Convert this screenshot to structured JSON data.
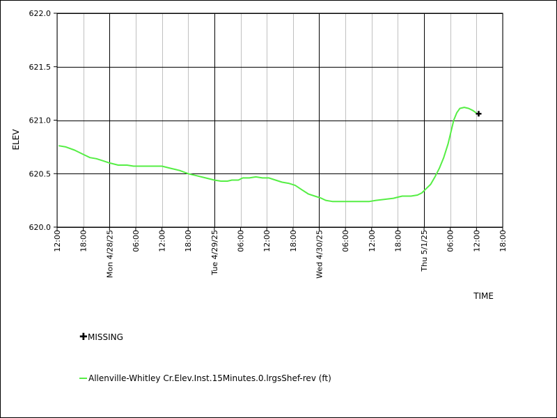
{
  "chart_data": {
    "type": "line",
    "ylabel": "ELEV",
    "xlabel": "TIME",
    "ylim": [
      620.0,
      622.0
    ],
    "yticks": [
      {
        "value": 620.0,
        "label": "620.0"
      },
      {
        "value": 620.5,
        "label": "620.5"
      },
      {
        "value": 621.0,
        "label": "621.0"
      },
      {
        "value": 621.5,
        "label": "621.5"
      },
      {
        "value": 622.0,
        "label": "622.0"
      }
    ],
    "xlim_hours": [
      0,
      102
    ],
    "xticks": [
      {
        "h": 0,
        "label": "12:00",
        "major": false
      },
      {
        "h": 6,
        "label": "18:00",
        "major": false
      },
      {
        "h": 12,
        "label": "Mon 4/28/25",
        "major": true
      },
      {
        "h": 18,
        "label": "06:00",
        "major": false
      },
      {
        "h": 24,
        "label": "12:00",
        "major": false
      },
      {
        "h": 30,
        "label": "18:00",
        "major": false
      },
      {
        "h": 36,
        "label": "Tue 4/29/25",
        "major": true
      },
      {
        "h": 42,
        "label": "06:00",
        "major": false
      },
      {
        "h": 48,
        "label": "12:00",
        "major": false
      },
      {
        "h": 54,
        "label": "18:00",
        "major": false
      },
      {
        "h": 60,
        "label": "Wed 4/30/25",
        "major": true
      },
      {
        "h": 66,
        "label": "06:00",
        "major": false
      },
      {
        "h": 72,
        "label": "12:00",
        "major": false
      },
      {
        "h": 78,
        "label": "18:00",
        "major": false
      },
      {
        "h": 84,
        "label": "Thu 5/1/25",
        "major": true
      },
      {
        "h": 90,
        "label": "06:00",
        "major": false
      },
      {
        "h": 96,
        "label": "12:00",
        "major": false
      },
      {
        "h": 102,
        "label": "18:00",
        "major": false
      }
    ],
    "grid": true,
    "legend_placement": "bottom-left",
    "series": [
      {
        "name": "Allenville-Whitley Cr.Elev.Inst.15Minutes.0.lrgsShef-rev (ft)",
        "color": "#55ee44",
        "points": [
          [
            0.5,
            620.76
          ],
          [
            2,
            620.75
          ],
          [
            4,
            620.72
          ],
          [
            6,
            620.68
          ],
          [
            7.5,
            620.65
          ],
          [
            9,
            620.64
          ],
          [
            10.5,
            620.62
          ],
          [
            12,
            620.6
          ],
          [
            14,
            620.58
          ],
          [
            16,
            620.58
          ],
          [
            17.5,
            620.57
          ],
          [
            20,
            620.57
          ],
          [
            22,
            620.57
          ],
          [
            24,
            620.57
          ],
          [
            26,
            620.55
          ],
          [
            28,
            620.53
          ],
          [
            30,
            620.5
          ],
          [
            32,
            620.48
          ],
          [
            34,
            620.46
          ],
          [
            36,
            620.44
          ],
          [
            37.5,
            620.43
          ],
          [
            39,
            620.43
          ],
          [
            40,
            620.44
          ],
          [
            41.5,
            620.44
          ],
          [
            42.5,
            620.46
          ],
          [
            44,
            620.46
          ],
          [
            45.5,
            620.47
          ],
          [
            47,
            620.46
          ],
          [
            48.5,
            620.46
          ],
          [
            50,
            620.44
          ],
          [
            51.5,
            620.42
          ],
          [
            53,
            620.41
          ],
          [
            54.5,
            620.39
          ],
          [
            56,
            620.35
          ],
          [
            57.5,
            620.31
          ],
          [
            59,
            620.29
          ],
          [
            60.5,
            620.27
          ],
          [
            61.5,
            620.25
          ],
          [
            63,
            620.24
          ],
          [
            66,
            620.24
          ],
          [
            69,
            620.24
          ],
          [
            71.5,
            620.24
          ],
          [
            73,
            620.25
          ],
          [
            75,
            620.26
          ],
          [
            77,
            620.27
          ],
          [
            78,
            620.28
          ],
          [
            79,
            620.29
          ],
          [
            81,
            620.29
          ],
          [
            82.5,
            620.3
          ],
          [
            83.5,
            620.32
          ],
          [
            84.5,
            620.36
          ],
          [
            85.5,
            620.4
          ],
          [
            86.5,
            620.47
          ],
          [
            87.5,
            620.55
          ],
          [
            88.5,
            620.65
          ],
          [
            89.5,
            620.78
          ],
          [
            90.2,
            620.9
          ],
          [
            90.8,
            621.0
          ],
          [
            91.5,
            621.07
          ],
          [
            92.2,
            621.11
          ],
          [
            93.2,
            621.12
          ],
          [
            94.2,
            621.11
          ],
          [
            95.2,
            621.09
          ],
          [
            96.2,
            621.06
          ]
        ]
      }
    ],
    "missing_markers": [
      [
        96.5,
        621.06
      ]
    ],
    "legend": [
      {
        "key": "missing",
        "label": "MISSING"
      },
      {
        "key": "series",
        "label": "Allenville-Whitley Cr.Elev.Inst.15Minutes.0.lrgsShef-rev (ft)"
      }
    ]
  },
  "colors": {
    "series": "#55ee44",
    "grid_major": "#000000",
    "grid_minor": "#c0c0c0",
    "missing": "#000000"
  }
}
